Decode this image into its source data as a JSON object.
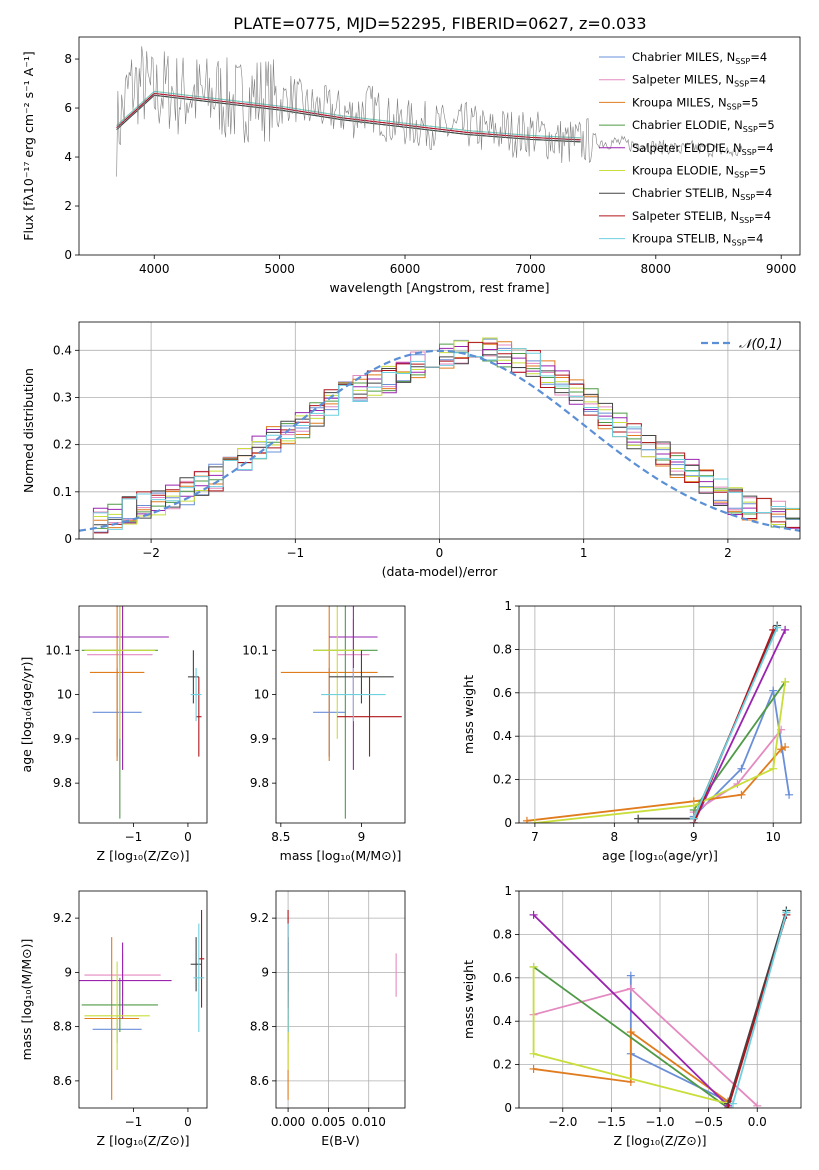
{
  "figure_title": "PLATE=0775, MJD=52295, FIBERID=0627, z=0.033",
  "series": [
    {
      "name": "Chabrier MILES",
      "nssp": "4",
      "color": "#6a8fd8"
    },
    {
      "name": "Salpeter MILES",
      "nssp": "4",
      "color": "#e48ac0"
    },
    {
      "name": "Kroupa MILES",
      "nssp": "5",
      "color": "#e07b1e"
    },
    {
      "name": "Chabrier ELODIE",
      "nssp": "5",
      "color": "#4f9a46"
    },
    {
      "name": "Salpeter ELODIE",
      "nssp": "4",
      "color": "#9a24b0"
    },
    {
      "name": "Kroupa ELODIE",
      "nssp": "5",
      "color": "#c9de3a"
    },
    {
      "name": "Chabrier STELIB",
      "nssp": "4",
      "color": "#444444"
    },
    {
      "name": "Salpeter STELIB",
      "nssp": "4",
      "color": "#b0141a"
    },
    {
      "name": "Kroupa STELIB",
      "nssp": "4",
      "color": "#6fd0e0"
    }
  ],
  "nssp_prefix": "N",
  "nssp_sub": "SSP",
  "chart_data": [
    {
      "id": "spectrum",
      "type": "line",
      "xlabel": "wavelength [Angstrom, rest frame]",
      "ylabel": "Flux [fλ10⁻¹⁷ erg cm⁻² s⁻¹ A⁻¹]",
      "xlim": [
        3400,
        9150
      ],
      "ylim": [
        0,
        8.9
      ],
      "xticks": [
        4000,
        5000,
        6000,
        7000,
        8000,
        9000
      ],
      "yticks": [
        0,
        2,
        4,
        6,
        8
      ],
      "grid": false,
      "legend": "top-right",
      "data_color": "#808080",
      "data_x": [
        3700,
        3800,
        3900,
        4000,
        4100,
        4200,
        4300,
        4400,
        4500,
        4600,
        4700,
        4800,
        4900,
        5000,
        5100,
        5200,
        5300,
        5400,
        5500,
        5600,
        5700,
        5800,
        5900,
        6000,
        6100,
        6200,
        6300,
        6400,
        6500,
        6600,
        6700,
        6800,
        6900,
        7000,
        7100,
        7200,
        7300,
        7400,
        7500,
        7600,
        7700,
        7800,
        7900,
        8000,
        8100,
        8200,
        8300,
        8400,
        8500,
        8600,
        8700
      ],
      "data_y": [
        5.0,
        6.8,
        7.0,
        6.5,
        6.8,
        6.5,
        6.6,
        6.4,
        6.6,
        6.2,
        6.3,
        6.5,
        6.4,
        6.2,
        6.5,
        6.0,
        6.0,
        5.9,
        5.8,
        5.7,
        6.1,
        5.8,
        5.4,
        5.4,
        5.3,
        5.3,
        5.2,
        5.1,
        5.3,
        5.1,
        5.0,
        5.1,
        4.9,
        5.0,
        4.9,
        4.7,
        4.6,
        4.6,
        4.7,
        4.6,
        4.6,
        4.5,
        4.5,
        4.4,
        4.4,
        4.3,
        4.4,
        4.3,
        4.3,
        4.2,
        4.2
      ],
      "model_x": [
        3700,
        4000,
        4500,
        5000,
        5500,
        6000,
        6500,
        7000,
        7400
      ],
      "model_y": [
        5.2,
        6.6,
        6.3,
        6.0,
        5.6,
        5.3,
        5.0,
        4.8,
        4.7
      ]
    },
    {
      "id": "residuals",
      "type": "bar",
      "xlabel": "(data-model)/error",
      "ylabel": "Normed distribution",
      "xlim": [
        -2.5,
        2.5
      ],
      "ylim": [
        0,
        0.46
      ],
      "xticks": [
        -2,
        -1,
        0,
        1,
        2
      ],
      "yticks": [
        0.0,
        0.1,
        0.2,
        0.3,
        0.4
      ],
      "grid": true,
      "legend": "top-right",
      "gauss_label": "𝒩(0,1)",
      "bin_width": 0.1,
      "hist_values": [
        0.03,
        0.04,
        0.05,
        0.06,
        0.07,
        0.08,
        0.09,
        0.1,
        0.12,
        0.13,
        0.15,
        0.17,
        0.19,
        0.21,
        0.23,
        0.24,
        0.26,
        0.29,
        0.31,
        0.32,
        0.33,
        0.34,
        0.35,
        0.37,
        0.38,
        0.39,
        0.4,
        0.4,
        0.4,
        0.39,
        0.38,
        0.37,
        0.35,
        0.33,
        0.31,
        0.29,
        0.26,
        0.24,
        0.22,
        0.2,
        0.18,
        0.16,
        0.14,
        0.12,
        0.1,
        0.08,
        0.07,
        0.06,
        0.05,
        0.04
      ]
    },
    {
      "id": "age-vs-z",
      "type": "scatter",
      "xlabel": "Z [log₁₀(Z/Z⊙)]",
      "ylabel": "age  [log₁₀(age/yr)]",
      "xlim": [
        -2.0,
        0.35
      ],
      "ylim": [
        9.71,
        10.2
      ],
      "xticks": [
        -1,
        0
      ],
      "yticks": [
        9.8,
        9.9,
        10.0,
        10.1
      ],
      "grid": false,
      "points": [
        {
          "s": 0,
          "x": -1.3,
          "y": 9.96,
          "xerr": 0.45,
          "yerr": 0.1
        },
        {
          "s": 1,
          "x": -1.25,
          "y": 10.09,
          "xerr": 0.6,
          "yerr": 0.02
        },
        {
          "s": 2,
          "x": -1.3,
          "y": 10.05,
          "xerr": 0.5,
          "yerr": 0.2
        },
        {
          "s": 3,
          "x": -1.25,
          "y": 10.1,
          "xerr": 0.7,
          "yerr": 0.38
        },
        {
          "s": 4,
          "x": -1.2,
          "y": 10.13,
          "xerr": 0.85,
          "yerr": 0.3
        },
        {
          "s": 5,
          "x": -1.25,
          "y": 10.1,
          "xerr": 0.65,
          "yerr": 0.2
        },
        {
          "s": 6,
          "x": 0.1,
          "y": 10.04,
          "xerr": 0.1,
          "yerr": 0.06
        },
        {
          "s": 7,
          "x": 0.2,
          "y": 9.95,
          "xerr": 0.05,
          "yerr": 0.09
        },
        {
          "s": 8,
          "x": 0.15,
          "y": 10.0,
          "xerr": 0.1,
          "yerr": 0.06
        }
      ]
    },
    {
      "id": "age-vs-mass",
      "type": "scatter",
      "xlabel": "mass [log₁₀(M/M⊙)]",
      "ylabel": "",
      "xlim": [
        8.47,
        9.27
      ],
      "ylim": [
        9.71,
        10.2
      ],
      "xticks": [
        8.5,
        9.0
      ],
      "yticks": [
        9.8,
        9.9,
        10.0,
        10.1
      ],
      "grid": false,
      "points": [
        {
          "s": 0,
          "x": 8.8,
          "y": 9.96,
          "xerr": 0.1,
          "yerr": 0.1
        },
        {
          "s": 1,
          "x": 8.95,
          "y": 10.09,
          "xerr": 0.1,
          "yerr": 0.08
        },
        {
          "s": 2,
          "x": 8.8,
          "y": 10.05,
          "xerr": 0.3,
          "yerr": 0.2
        },
        {
          "s": 3,
          "x": 8.9,
          "y": 10.1,
          "xerr": 0.2,
          "yerr": 0.38
        },
        {
          "s": 4,
          "x": 8.95,
          "y": 10.13,
          "xerr": 0.15,
          "yerr": 0.3
        },
        {
          "s": 5,
          "x": 8.85,
          "y": 10.1,
          "xerr": 0.15,
          "yerr": 0.2
        },
        {
          "s": 6,
          "x": 9.0,
          "y": 10.04,
          "xerr": 0.2,
          "yerr": 0.06
        },
        {
          "s": 7,
          "x": 9.05,
          "y": 9.95,
          "xerr": 0.2,
          "yerr": 0.09
        },
        {
          "s": 8,
          "x": 8.95,
          "y": 10.0,
          "xerr": 0.2,
          "yerr": 0.06
        }
      ]
    },
    {
      "id": "mass-weight-vs-age",
      "type": "line",
      "xlabel": "age  [log₁₀(age/yr)]",
      "ylabel": "mass weight",
      "xlim": [
        6.8,
        10.35
      ],
      "ylim": [
        0,
        1.0
      ],
      "xticks": [
        7,
        8,
        9,
        10
      ],
      "yticks": [
        0.0,
        0.2,
        0.4,
        0.6,
        0.8,
        1.0
      ],
      "grid": true,
      "lines": [
        {
          "s": 0,
          "x": [
            9.0,
            9.6,
            10.0,
            10.2
          ],
          "y": [
            0.03,
            0.25,
            0.61,
            0.13
          ]
        },
        {
          "s": 1,
          "x": 9.0,
          "y": 0.0
        },
        {
          "s": 1,
          "x": [
            9.0,
            9.55,
            10.1
          ],
          "y": [
            0.05,
            0.18,
            0.43
          ]
        },
        {
          "s": 2,
          "x": [
            6.9,
            9.0,
            9.6,
            10.1,
            10.15
          ],
          "y": [
            0.01,
            0.1,
            0.13,
            0.34,
            0.35
          ]
        },
        {
          "s": 3,
          "x": [
            9.0,
            10.15
          ],
          "y": [
            0.06,
            0.65
          ]
        },
        {
          "s": 4,
          "x": [
            9.0,
            10.15
          ],
          "y": [
            0.0,
            0.89
          ]
        },
        {
          "s": 5,
          "x": [
            7.0,
            9.0,
            10.0,
            10.15
          ],
          "y": [
            0.0,
            0.08,
            0.25,
            0.65
          ]
        },
        {
          "s": 6,
          "x": [
            8.3,
            9.0,
            10.05
          ],
          "y": [
            0.02,
            0.02,
            0.91
          ]
        },
        {
          "s": 7,
          "x": [
            9.0,
            10.0
          ],
          "y": [
            0.0,
            0.89
          ]
        },
        {
          "s": 8,
          "x": [
            9.0,
            10.05
          ],
          "y": [
            0.02,
            0.9
          ]
        }
      ]
    },
    {
      "id": "mass-vs-z",
      "type": "scatter",
      "xlabel": "Z [log₁₀(Z/Z⊙)]",
      "ylabel": "mass [log₁₀(M/M⊙)]",
      "xlim": [
        -2.0,
        0.35
      ],
      "ylim": [
        8.5,
        9.3
      ],
      "xticks": [
        -1,
        0
      ],
      "yticks": [
        8.6,
        8.8,
        9.0,
        9.2
      ],
      "grid": false,
      "points": [
        {
          "s": 0,
          "x": -1.3,
          "y": 8.79,
          "xerr": 0.45,
          "yerr": 0.05
        },
        {
          "s": 1,
          "x": -1.2,
          "y": 8.99,
          "xerr": 0.7,
          "yerr": 0.08
        },
        {
          "s": 2,
          "x": -1.4,
          "y": 8.83,
          "xerr": 0.5,
          "yerr": 0.3
        },
        {
          "s": 3,
          "x": -1.25,
          "y": 8.88,
          "xerr": 0.7,
          "yerr": 0.1
        },
        {
          "s": 4,
          "x": -1.2,
          "y": 8.97,
          "xerr": 0.9,
          "yerr": 0.14
        },
        {
          "s": 5,
          "x": -1.3,
          "y": 8.84,
          "xerr": 0.6,
          "yerr": 0.2
        },
        {
          "s": 6,
          "x": 0.15,
          "y": 9.03,
          "xerr": 0.1,
          "yerr": 0.1
        },
        {
          "s": 7,
          "x": 0.25,
          "y": 9.05,
          "xerr": 0.05,
          "yerr": 0.18
        },
        {
          "s": 8,
          "x": 0.2,
          "y": 8.98,
          "xerr": 0.1,
          "yerr": 0.2
        }
      ]
    },
    {
      "id": "mass-vs-ebv",
      "type": "scatter",
      "xlabel": "E(B-V)",
      "ylabel": "",
      "xlim": [
        -0.0015,
        0.0145
      ],
      "ylim": [
        8.5,
        9.3
      ],
      "xticks": [
        0.0,
        0.005,
        0.01
      ],
      "xticklabels": [
        "0.000",
        "0.005",
        "0.010"
      ],
      "yticks": [
        8.6,
        8.8,
        9.0,
        9.2
      ],
      "grid": true,
      "points": [
        {
          "s": 0,
          "x": 0.0,
          "y": 8.79,
          "xerr": 0,
          "yerr": 0.05
        },
        {
          "s": 1,
          "x": 0.0134,
          "y": 8.99,
          "xerr": 0,
          "yerr": 0.08
        },
        {
          "s": 2,
          "x": 0.0,
          "y": 8.83,
          "xerr": 0,
          "yerr": 0.3
        },
        {
          "s": 3,
          "x": 0.0,
          "y": 8.88,
          "xerr": 0,
          "yerr": 0.1
        },
        {
          "s": 4,
          "x": 0.0,
          "y": 8.97,
          "xerr": 0,
          "yerr": 0.14
        },
        {
          "s": 5,
          "x": 0.0,
          "y": 8.84,
          "xerr": 0,
          "yerr": 0.2
        },
        {
          "s": 6,
          "x": 0.0,
          "y": 9.03,
          "xerr": 0,
          "yerr": 0.1
        },
        {
          "s": 7,
          "x": 0.0,
          "y": 9.05,
          "xerr": 0,
          "yerr": 0.18
        },
        {
          "s": 8,
          "x": 0.0,
          "y": 8.98,
          "xerr": 0,
          "yerr": 0.2
        }
      ]
    },
    {
      "id": "mass-weight-vs-z",
      "type": "line",
      "xlabel": "Z [log₁₀(Z/Z⊙)]",
      "ylabel": "mass weight",
      "xlim": [
        -2.45,
        0.45
      ],
      "ylim": [
        0,
        1.0
      ],
      "xticks": [
        -2.0,
        -1.5,
        -1.0,
        -0.5,
        0.0
      ],
      "xticklabels": [
        "−2.0",
        "−1.5",
        "−1.0",
        "−0.5",
        "0.0"
      ],
      "yticks": [
        0.0,
        0.2,
        0.4,
        0.6,
        0.8,
        1.0
      ],
      "grid": true,
      "lines": [
        {
          "s": 0,
          "x": [
            -1.3,
            -1.3,
            -0.3
          ],
          "y": [
            0.61,
            0.25,
            0.03
          ]
        },
        {
          "s": 1,
          "x": [
            -2.3,
            -1.3,
            0.0
          ],
          "y": [
            0.43,
            0.55,
            0.01
          ]
        },
        {
          "s": 2,
          "x": [
            -2.3,
            -1.3,
            -1.3,
            -0.3
          ],
          "y": [
            0.18,
            0.12,
            0.35,
            0.03
          ]
        },
        {
          "s": 3,
          "x": [
            -2.3,
            -0.3,
            0.3
          ],
          "y": [
            0.65,
            0.0,
            0.91
          ]
        },
        {
          "s": 4,
          "x": [
            -2.3,
            -0.3
          ],
          "y": [
            0.89,
            0.01
          ]
        },
        {
          "s": 5,
          "x": [
            -2.3,
            -2.3,
            -0.3
          ],
          "y": [
            0.65,
            0.25,
            0.02
          ]
        },
        {
          "s": 6,
          "x": [
            -0.3,
            0.3
          ],
          "y": [
            0.02,
            0.91
          ]
        },
        {
          "s": 7,
          "x": [
            -0.3,
            0.3
          ],
          "y": [
            0.0,
            0.89
          ]
        },
        {
          "s": 8,
          "x": [
            -0.25,
            0.3
          ],
          "y": [
            0.02,
            0.9
          ]
        }
      ]
    }
  ]
}
